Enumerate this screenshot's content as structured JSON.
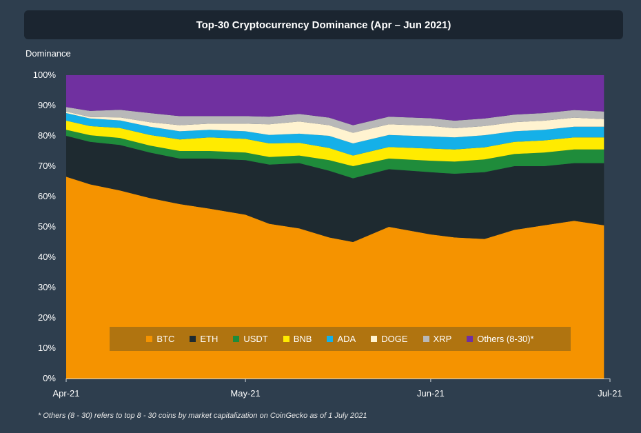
{
  "header": {
    "title": "Top-30 Cryptocurrency Dominance (Apr – Jun 2021)",
    "y_title": "Dominance",
    "footnote": "* Others (8 - 30) refers to top 8 - 30 coins by market capitalization on CoinGecko as of 1 July 2021"
  },
  "chart_data": {
    "type": "area",
    "stacked": true,
    "title": "Top-30 Cryptocurrency Dominance (Apr – Jun 2021)",
    "ylabel": "Dominance",
    "xlabel": "",
    "ylim": [
      0,
      100
    ],
    "y_ticks": [
      "0%",
      "10%",
      "20%",
      "30%",
      "40%",
      "50%",
      "60%",
      "70%",
      "80%",
      "90%",
      "100%"
    ],
    "x_ticks": [
      {
        "label": "Apr-21",
        "day": 0
      },
      {
        "label": "May-21",
        "day": 30
      },
      {
        "label": "Jun-21",
        "day": 61
      },
      {
        "label": "Jul-21",
        "day": 91
      }
    ],
    "legend_position": "bottom-center",
    "x": [
      "2021-04-01",
      "2021-04-05",
      "2021-04-10",
      "2021-04-15",
      "2021-04-20",
      "2021-04-25",
      "2021-05-01",
      "2021-05-05",
      "2021-05-10",
      "2021-05-15",
      "2021-05-19",
      "2021-05-25",
      "2021-06-01",
      "2021-06-05",
      "2021-06-10",
      "2021-06-15",
      "2021-06-20",
      "2021-06-25",
      "2021-06-30"
    ],
    "series": [
      {
        "name": "BTC",
        "color": "#f59300",
        "values": [
          66.5,
          64.0,
          62.0,
          59.5,
          57.5,
          56.0,
          54.0,
          51.0,
          49.5,
          46.5,
          45.0,
          50.0,
          47.5,
          46.5,
          46.0,
          49.0,
          50.5,
          52.0,
          50.5
        ]
      },
      {
        "name": "ETH",
        "color": "#1e2a30",
        "values": [
          13.5,
          14.0,
          15.0,
          15.0,
          15.0,
          16.5,
          18.0,
          19.5,
          21.5,
          22.0,
          21.0,
          19.0,
          20.5,
          21.0,
          22.0,
          21.0,
          19.5,
          19.0,
          20.5
        ]
      },
      {
        "name": "USDT",
        "color": "#1f8c3b",
        "values": [
          2.0,
          2.2,
          2.3,
          2.3,
          2.5,
          2.5,
          2.5,
          2.5,
          2.5,
          3.5,
          4.0,
          3.5,
          3.8,
          4.0,
          4.2,
          4.0,
          4.5,
          4.5,
          4.5
        ]
      },
      {
        "name": "BNB",
        "color": "#ffeb00",
        "values": [
          3.0,
          3.0,
          3.3,
          3.5,
          3.8,
          4.5,
          4.5,
          4.5,
          4.2,
          4.0,
          3.5,
          3.8,
          4.0,
          4.0,
          4.0,
          4.0,
          4.0,
          4.0,
          4.0
        ]
      },
      {
        "name": "ADA",
        "color": "#15b0e8",
        "values": [
          2.5,
          2.5,
          2.5,
          2.7,
          2.7,
          2.5,
          2.5,
          2.8,
          3.0,
          4.0,
          4.0,
          4.0,
          4.0,
          4.0,
          4.0,
          3.5,
          3.5,
          3.5,
          3.5
        ]
      },
      {
        "name": "DOGE",
        "color": "#fff3d0",
        "values": [
          0.5,
          0.5,
          1.0,
          1.5,
          2.0,
          2.0,
          2.5,
          3.5,
          4.0,
          3.5,
          3.5,
          3.5,
          3.5,
          3.0,
          3.0,
          3.0,
          3.0,
          3.0,
          2.5
        ]
      },
      {
        "name": "XRP",
        "color": "#b8b8b8",
        "values": [
          1.5,
          2.0,
          2.5,
          3.0,
          3.0,
          2.5,
          2.5,
          2.5,
          2.5,
          2.5,
          2.5,
          2.5,
          2.5,
          2.5,
          2.5,
          2.5,
          2.5,
          2.5,
          2.5
        ]
      },
      {
        "name": "Others (8-30)*",
        "color": "#7030a0",
        "values": [
          10.5,
          11.8,
          11.4,
          12.0,
          13.5,
          13.5,
          13.5,
          13.2,
          12.8,
          14.0,
          16.5,
          13.7,
          14.2,
          15.0,
          14.3,
          13.0,
          12.5,
          11.5,
          12.0
        ]
      }
    ]
  }
}
